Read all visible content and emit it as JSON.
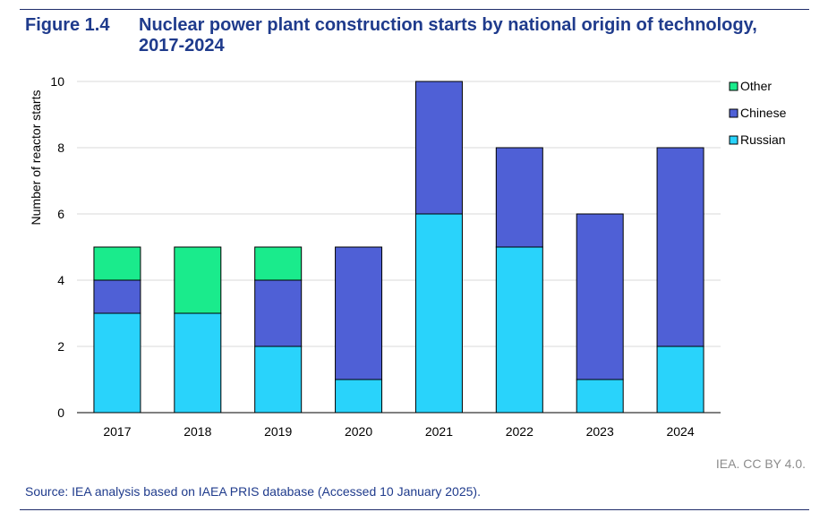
{
  "figure": {
    "number": "Figure 1.4",
    "title": "Nuclear power plant construction starts by national origin of technology, 2017-2024"
  },
  "credit": "IEA. CC BY 4.0.",
  "source": "Source: IEA analysis based on IAEA PRIS database (Accessed 10 January 2025).",
  "chart_data": {
    "type": "bar",
    "stacked": true,
    "title": "Nuclear power plant construction starts by national origin of technology, 2017-2024",
    "xlabel": "",
    "ylabel": "Number of reactor starts",
    "ylim": [
      0,
      10
    ],
    "yticks": [
      0,
      2,
      4,
      6,
      8,
      10
    ],
    "grid": true,
    "legend_position": "right",
    "categories": [
      "2017",
      "2018",
      "2019",
      "2020",
      "2021",
      "2022",
      "2023",
      "2024"
    ],
    "series": [
      {
        "name": "Russian",
        "color": "#29d3fb",
        "values": [
          3,
          3,
          2,
          1,
          6,
          5,
          1,
          2
        ]
      },
      {
        "name": "Chinese",
        "color": "#4f60d6",
        "values": [
          1,
          0,
          2,
          4,
          4,
          3,
          5,
          6
        ]
      },
      {
        "name": "Other",
        "color": "#1aeb8c",
        "values": [
          1,
          2,
          1,
          0,
          0,
          0,
          0,
          0
        ]
      }
    ],
    "legend_order": [
      "Other",
      "Chinese",
      "Russian"
    ]
  }
}
